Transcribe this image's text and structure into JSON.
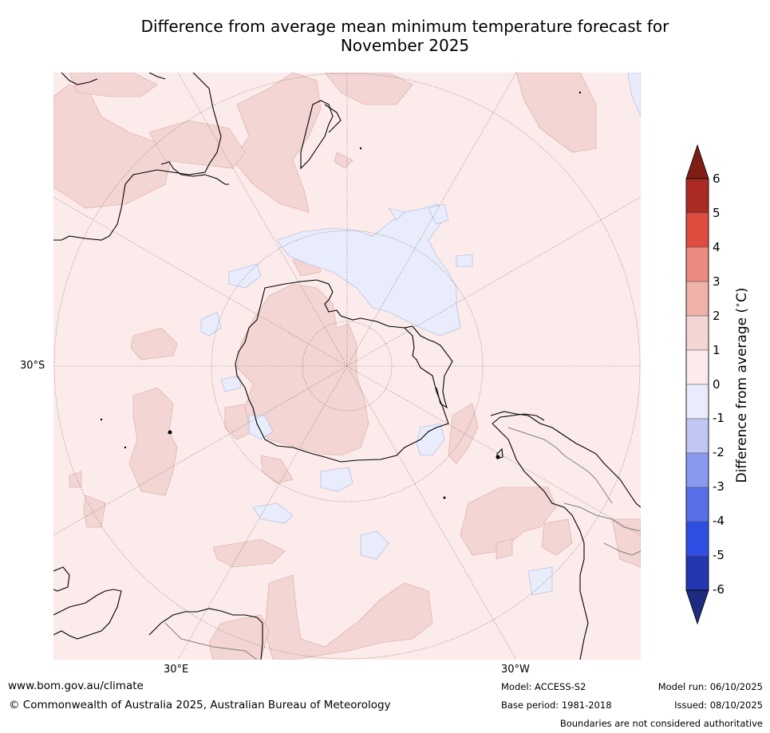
{
  "title_line1": "Difference from average mean minimum temperature forecast for",
  "title_line2": "November 2025",
  "map": {
    "projection": "south-polar-stereographic",
    "region": "Southern Hemisphere",
    "grid_labels": {
      "lat_30s": "30°S",
      "lon_30e": "30°E",
      "lon_30w": "30°W"
    },
    "colors": {
      "ocean_background": "#fbebea",
      "anomaly_0_to_1": "#fbebea",
      "anomaly_1_to_2": "#f3d5d3",
      "anomaly_minus1_to_0": "#e8ecfb",
      "coastline": "#000000",
      "border": "#808080",
      "graticule": "#555555"
    }
  },
  "colorbar": {
    "label": "Difference from average ($^\\circ$C)",
    "ticks": [
      "6",
      "5",
      "4",
      "3",
      "2",
      "1",
      "0",
      "-1",
      "-2",
      "-3",
      "-4",
      "-5",
      "-6"
    ],
    "bands": [
      {
        "range": "above 6",
        "color": "#7e1e17"
      },
      {
        "range": "5 to 6",
        "color": "#ab2b24"
      },
      {
        "range": "4 to 5",
        "color": "#de4c40"
      },
      {
        "range": "3 to 4",
        "color": "#eb8a7f"
      },
      {
        "range": "2 to 3",
        "color": "#efb2aa"
      },
      {
        "range": "1 to 2",
        "color": "#f3d5d3"
      },
      {
        "range": "0 to 1",
        "color": "#fbebea"
      },
      {
        "range": "-1 to 0",
        "color": "#e8ecfb"
      },
      {
        "range": "-2 to -1",
        "color": "#c0c7f2"
      },
      {
        "range": "-3 to -2",
        "color": "#8899ee"
      },
      {
        "range": "-4 to -3",
        "color": "#5770e8"
      },
      {
        "range": "-5 to -4",
        "color": "#2f4fe4"
      },
      {
        "range": "-6 to -5",
        "color": "#2338b0"
      },
      {
        "range": "below -6",
        "color": "#1f2b7e"
      }
    ]
  },
  "footer": {
    "website": "www.bom.gov.au/climate",
    "copyright": "© Commonwealth of Australia 2025, Australian Bureau of Meteorology",
    "model": "Model: ACCESS-S2",
    "base_period": "Base period: 1981-2018",
    "model_run": "Model run: 06/10/2025",
    "issued": "Issued: 08/10/2025",
    "disclaimer": "Boundaries are not considered authoritative"
  }
}
